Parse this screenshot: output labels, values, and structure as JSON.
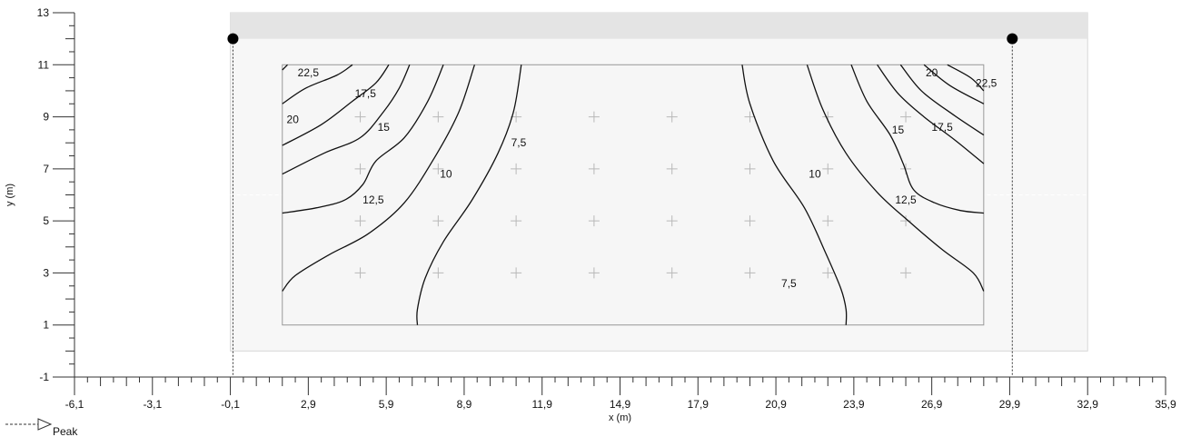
{
  "chart_data": {
    "type": "contour",
    "xlabel": "x (m)",
    "ylabel": "y (m)",
    "xlim": [
      -6.1,
      35.9
    ],
    "ylim": [
      -1,
      13
    ],
    "x_tick_labels": [
      "-6,1",
      "-3,1",
      "-0,1",
      "2,9",
      "5,9",
      "8,9",
      "11,9",
      "14,9",
      "17,9",
      "20,9",
      "23,9",
      "26,9",
      "29,9",
      "32,9",
      "35,9"
    ],
    "y_tick_labels": [
      "-1",
      "1",
      "3",
      "5",
      "7",
      "9",
      "11",
      "13"
    ],
    "room_outline": {
      "x": [
        -0.1,
        32.9
      ],
      "y": [
        0,
        13
      ]
    },
    "measurement_area": {
      "x": [
        1.9,
        28.9
      ],
      "y": [
        1,
        11
      ]
    },
    "luminaires": [
      {
        "x": 0.0,
        "y": 12
      },
      {
        "x": 30.0,
        "y": 12
      }
    ],
    "grid_points": {
      "x": [
        4.9,
        7.9,
        10.9,
        13.9,
        16.9,
        19.9,
        22.9,
        25.9
      ],
      "y": [
        3,
        5,
        7,
        9
      ]
    },
    "contour_labels": [
      {
        "text": "22,5",
        "x": 2.9,
        "y": 10.7
      },
      {
        "text": "17,5",
        "x": 5.1,
        "y": 9.9
      },
      {
        "text": "20",
        "x": 2.3,
        "y": 8.9
      },
      {
        "text": "15",
        "x": 5.8,
        "y": 8.6
      },
      {
        "text": "7,5",
        "x": 11.0,
        "y": 8.0
      },
      {
        "text": "10",
        "x": 8.2,
        "y": 6.8
      },
      {
        "text": "12,5",
        "x": 5.4,
        "y": 5.8
      },
      {
        "text": "20",
        "x": 26.9,
        "y": 10.7
      },
      {
        "text": "22,5",
        "x": 29.0,
        "y": 10.3
      },
      {
        "text": "15",
        "x": 25.6,
        "y": 8.5
      },
      {
        "text": "17,5",
        "x": 27.3,
        "y": 8.6
      },
      {
        "text": "10",
        "x": 22.4,
        "y": 6.8
      },
      {
        "text": "12,5",
        "x": 25.9,
        "y": 5.8
      },
      {
        "text": "7,5",
        "x": 21.4,
        "y": 2.6
      }
    ],
    "contours": [
      {
        "level": "7,5",
        "points": [
          [
            7.1,
            1
          ],
          [
            7.1,
            1.6
          ],
          [
            7.4,
            2.8
          ],
          [
            8.1,
            4.2
          ],
          [
            9.2,
            5.8
          ],
          [
            10.2,
            7.6
          ],
          [
            10.8,
            9.2
          ],
          [
            11.1,
            11
          ]
        ]
      },
      {
        "level": "10",
        "points": [
          [
            1.9,
            2.3
          ],
          [
            2.4,
            2.9
          ],
          [
            3.7,
            3.7
          ],
          [
            5.2,
            4.5
          ],
          [
            6.6,
            5.7
          ],
          [
            7.8,
            7.5
          ],
          [
            8.7,
            9.2
          ],
          [
            9.3,
            11
          ]
        ]
      },
      {
        "level": "12,5",
        "points": [
          [
            1.9,
            5.3
          ],
          [
            3.2,
            5.5
          ],
          [
            4.3,
            5.8
          ],
          [
            5.0,
            6.4
          ],
          [
            5.5,
            7.3
          ],
          [
            6.6,
            8.2
          ],
          [
            7.5,
            9.6
          ],
          [
            8.1,
            11
          ]
        ]
      },
      {
        "level": "15",
        "points": [
          [
            1.9,
            6.8
          ],
          [
            3.5,
            7.6
          ],
          [
            4.9,
            8.2
          ],
          [
            5.8,
            9.2
          ],
          [
            6.4,
            10.1
          ],
          [
            6.8,
            11
          ]
        ]
      },
      {
        "level": "17,5",
        "points": [
          [
            1.9,
            7.9
          ],
          [
            3.4,
            8.7
          ],
          [
            4.6,
            9.6
          ],
          [
            5.5,
            10.3
          ],
          [
            6.0,
            11
          ]
        ]
      },
      {
        "level": "20",
        "points": [
          [
            1.9,
            9.5
          ],
          [
            2.8,
            10.1
          ],
          [
            4.0,
            10.6
          ],
          [
            4.6,
            11
          ]
        ]
      },
      {
        "level": "22,5",
        "points": [
          [
            1.9,
            10.8
          ],
          [
            2.1,
            11
          ]
        ]
      },
      {
        "level": "7,5",
        "points": [
          [
            19.6,
            11
          ],
          [
            19.9,
            9.5
          ],
          [
            20.8,
            7.3
          ],
          [
            22.0,
            5.5
          ],
          [
            22.8,
            3.8
          ],
          [
            23.4,
            2.4
          ],
          [
            23.6,
            1.6
          ],
          [
            23.6,
            1
          ]
        ]
      },
      {
        "level": "10",
        "points": [
          [
            22.1,
            11
          ],
          [
            22.7,
            9.3
          ],
          [
            23.6,
            7.6
          ],
          [
            24.8,
            6.1
          ],
          [
            26.0,
            5.0
          ],
          [
            27.3,
            3.9
          ],
          [
            28.5,
            3.0
          ],
          [
            28.9,
            2.3
          ]
        ]
      },
      {
        "level": "12,5",
        "points": [
          [
            23.8,
            11
          ],
          [
            24.4,
            9.6
          ],
          [
            25.3,
            8.3
          ],
          [
            25.8,
            7.2
          ],
          [
            26.2,
            6.2
          ],
          [
            27.0,
            5.7
          ],
          [
            28.0,
            5.4
          ],
          [
            28.9,
            5.3
          ]
        ]
      },
      {
        "level": "15",
        "points": [
          [
            24.8,
            11
          ],
          [
            25.6,
            9.9
          ],
          [
            26.6,
            9.0
          ],
          [
            27.8,
            8.1
          ],
          [
            28.9,
            7.2
          ]
        ]
      },
      {
        "level": "17,5",
        "points": [
          [
            25.7,
            11
          ],
          [
            26.5,
            10.0
          ],
          [
            27.7,
            9.1
          ],
          [
            28.9,
            8.3
          ]
        ]
      },
      {
        "level": "20",
        "points": [
          [
            26.6,
            11
          ],
          [
            27.6,
            10.2
          ],
          [
            28.9,
            9.5
          ]
        ]
      },
      {
        "level": "22,5",
        "points": [
          [
            27.5,
            11
          ],
          [
            28.4,
            10.5
          ],
          [
            28.9,
            10.0
          ]
        ]
      }
    ]
  },
  "legend": {
    "label": "Peak"
  }
}
